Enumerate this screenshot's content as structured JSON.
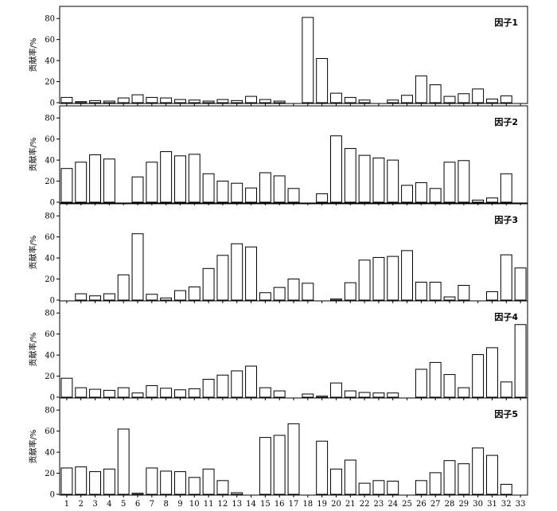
{
  "chart_data": {
    "type": "bar",
    "categories": [
      "1",
      "2",
      "3",
      "4",
      "5",
      "6",
      "7",
      "8",
      "9",
      "10",
      "11",
      "12",
      "13",
      "14",
      "15",
      "16",
      "17",
      "18",
      "19",
      "20",
      "21",
      "22",
      "23",
      "24",
      "25",
      "26",
      "27",
      "28",
      "29",
      "30",
      "31",
      "32",
      "33"
    ],
    "ylabel": "贡献率/%",
    "ylim": [
      0,
      90
    ],
    "yticks": [
      0,
      20,
      40,
      60,
      80
    ],
    "grid": false,
    "panels": [
      {
        "name": "因子1",
        "values": [
          5,
          1,
          2,
          1.5,
          4.5,
          7.5,
          5,
          4.5,
          3,
          2.5,
          1.5,
          3,
          2,
          6,
          3,
          1.5,
          0,
          81,
          42,
          9,
          5,
          2.5,
          0,
          2.5,
          7,
          25.5,
          17,
          6,
          8.5,
          13,
          3.5,
          6.5,
          0
        ]
      },
      {
        "name": "因子2",
        "values": [
          32,
          38,
          45,
          41,
          0,
          24,
          38,
          48,
          44,
          45.5,
          27,
          20,
          18,
          13.5,
          28,
          25,
          13,
          0,
          8,
          63,
          51,
          44.5,
          42,
          40,
          16,
          18.5,
          13,
          38,
          39.5,
          2,
          4,
          27,
          0
        ]
      },
      {
        "name": "因子3",
        "values": [
          0,
          6,
          4,
          6,
          24,
          63,
          5.5,
          2,
          9,
          12.5,
          30,
          42.5,
          53.5,
          50.5,
          7,
          12,
          20,
          16,
          0,
          1,
          16.5,
          38,
          40.5,
          41.5,
          47,
          17,
          17,
          3,
          14,
          0,
          8,
          43,
          30.5
        ]
      },
      {
        "name": "因子4",
        "values": [
          18,
          9,
          7.5,
          6.5,
          9,
          4,
          11,
          8.5,
          7,
          8,
          17,
          21,
          25,
          29.5,
          9,
          6,
          0,
          3,
          1,
          13.5,
          6,
          4.5,
          4,
          4,
          0,
          26.5,
          33,
          21.5,
          9,
          40.5,
          47,
          14.5,
          69
        ]
      },
      {
        "name": "因子5",
        "values": [
          25,
          26,
          21.5,
          24,
          62,
          1,
          25,
          22,
          21.5,
          16,
          24,
          13,
          1.5,
          0,
          54,
          56,
          67,
          0,
          50.5,
          24,
          32.5,
          10.5,
          13,
          12.5,
          0,
          13,
          20.5,
          32,
          29,
          44,
          37,
          9.5,
          0
        ]
      }
    ]
  }
}
